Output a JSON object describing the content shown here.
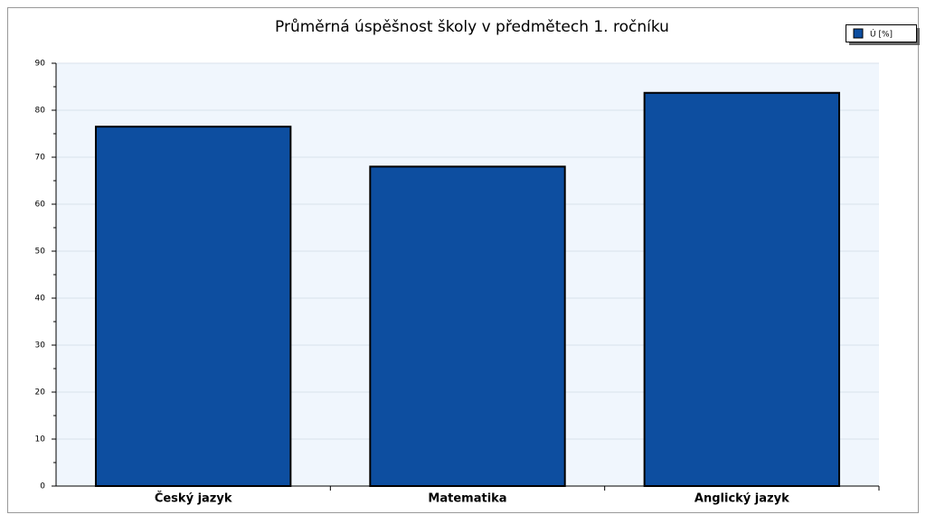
{
  "chart_data": {
    "type": "bar",
    "title": "Průměrná úspěšnost školy v předmětech 1. ročníku",
    "categories": [
      "Český jazyk",
      "Matematika",
      "Anglický jazyk"
    ],
    "series": [
      {
        "name": "Ú [%]",
        "color": "#0d4ea0",
        "values": [
          76.5,
          68,
          83.7
        ]
      }
    ],
    "ylim": [
      0,
      90
    ],
    "yticks": [
      0,
      10,
      20,
      30,
      40,
      50,
      60,
      70,
      80,
      90
    ],
    "grid": true,
    "legend": "top-right"
  }
}
